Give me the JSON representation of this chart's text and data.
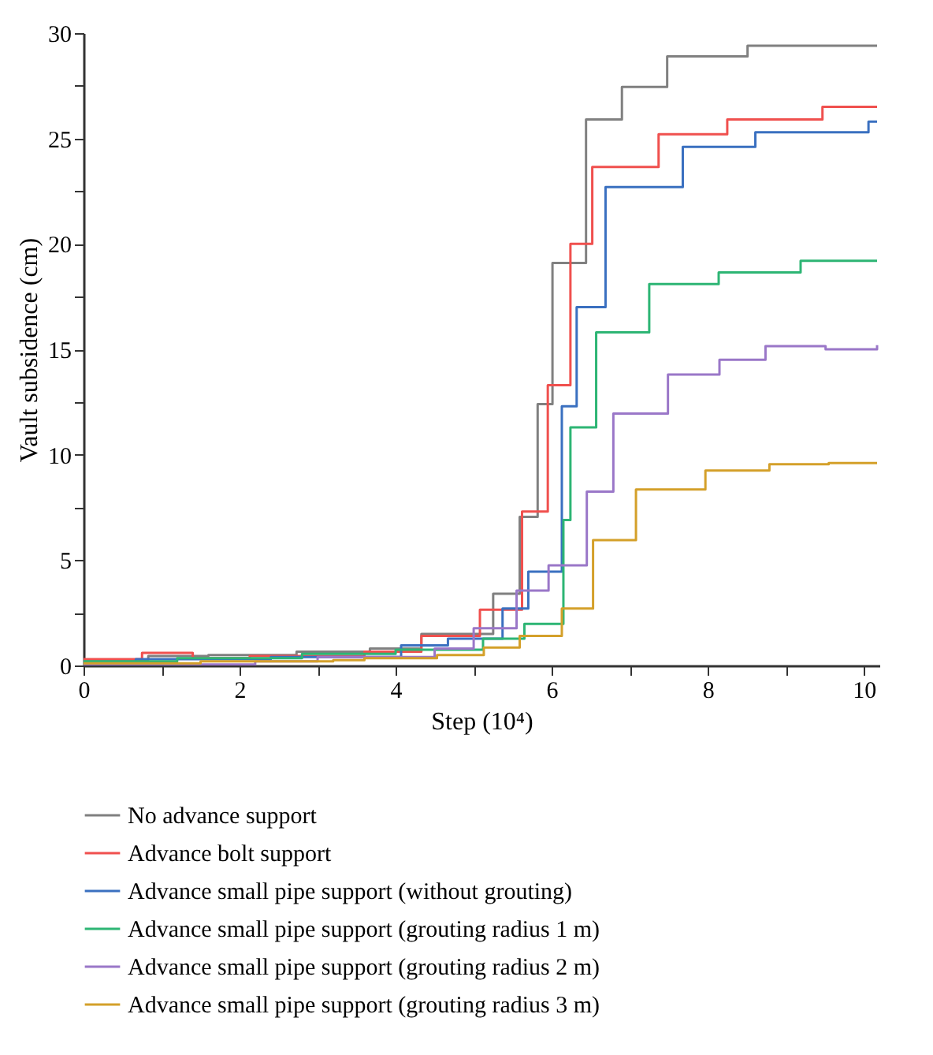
{
  "chart_data": {
    "type": "step",
    "xlabel": "Step (10⁴)",
    "ylabel": "Vault subsidence (cm)",
    "xlim": [
      0,
      10.2
    ],
    "ylim": [
      0,
      30
    ],
    "xticks": [
      0,
      {
        "value": 1,
        "label": null
      },
      2,
      {
        "value": 3,
        "label": null
      },
      4,
      {
        "value": 5,
        "label": null
      },
      6,
      {
        "value": 7,
        "label": null
      },
      8,
      {
        "value": 9,
        "label": null
      },
      10
    ],
    "yticks": [
      0,
      {
        "value": 2.5,
        "label": null
      },
      5,
      {
        "value": 7.5,
        "label": null
      },
      10,
      {
        "value": 12.5,
        "label": null
      },
      15,
      {
        "value": 17.5,
        "label": null
      },
      20,
      {
        "value": 22.5,
        "label": null
      },
      25,
      {
        "value": 27.5,
        "label": null
      },
      30
    ],
    "grid": false,
    "legend": "bottom",
    "line_style": "solid",
    "series": [
      {
        "name": "No advance support",
        "color": "#808080",
        "x": [
          0,
          0.83,
          1.6,
          2.73,
          3.67,
          4.33,
          5.25,
          5.59,
          5.82,
          6.01,
          6.44,
          6.9,
          7.48,
          8.51,
          10.17
        ],
        "values": [
          0.28,
          0.45,
          0.5,
          0.65,
          0.8,
          1.5,
          3.4,
          7.05,
          12.4,
          19.1,
          25.9,
          27.45,
          28.9,
          29.4,
          29.4
        ]
      },
      {
        "name": "Advance bolt support",
        "color": "#f0504e",
        "x": [
          0,
          0.75,
          1.4,
          2.13,
          3.6,
          4.33,
          5.08,
          5.62,
          5.95,
          6.24,
          6.52,
          7.37,
          8.25,
          9.47,
          10.17
        ],
        "values": [
          0.3,
          0.6,
          0.35,
          0.45,
          0.65,
          1.4,
          2.65,
          7.3,
          13.3,
          20.0,
          23.65,
          25.2,
          25.9,
          26.5,
          26.5
        ]
      },
      {
        "name": "Advance small pipe support (without grouting)",
        "color": "#3a70c0",
        "x": [
          0,
          0.67,
          2.4,
          4.07,
          4.67,
          5.37,
          5.7,
          6.13,
          6.32,
          6.69,
          7.68,
          8.61,
          10.06,
          10.17
        ],
        "values": [
          0.1,
          0.3,
          0.4,
          0.95,
          1.27,
          2.7,
          4.45,
          12.3,
          17.0,
          22.7,
          24.6,
          25.3,
          25.8,
          25.8
        ]
      },
      {
        "name": "Advance small pipe support (grouting radius 1 m)",
        "color": "#2db574",
        "x": [
          0,
          1.2,
          2.8,
          4.0,
          5.12,
          5.65,
          6.15,
          6.24,
          6.57,
          7.25,
          8.14,
          9.19,
          10.17
        ],
        "values": [
          0.2,
          0.35,
          0.55,
          0.75,
          1.27,
          1.97,
          6.9,
          11.3,
          15.8,
          18.1,
          18.65,
          19.2,
          19.2
        ]
      },
      {
        "name": "Advance small pipe support (grouting radius 2 m)",
        "color": "#9a77c8",
        "x": [
          0,
          2.2,
          3.0,
          4.5,
          5.0,
          5.55,
          5.96,
          6.45,
          6.79,
          7.49,
          8.15,
          8.74,
          9.51,
          10.17
        ],
        "values": [
          0.05,
          0.2,
          0.4,
          0.8,
          1.77,
          3.55,
          4.75,
          8.25,
          11.95,
          13.8,
          14.5,
          15.15,
          15.0,
          15.2
        ]
      },
      {
        "name": "Advance small pipe support (grouting radius 3 m)",
        "color": "#d4a02a",
        "x": [
          0,
          1.5,
          3.2,
          3.6,
          4.53,
          5.13,
          5.59,
          6.13,
          6.53,
          7.08,
          7.97,
          8.79,
          9.55,
          10.17
        ],
        "values": [
          0.1,
          0.2,
          0.25,
          0.35,
          0.5,
          0.85,
          1.4,
          2.7,
          5.95,
          8.35,
          9.25,
          9.55,
          9.6,
          9.6
        ]
      }
    ]
  }
}
